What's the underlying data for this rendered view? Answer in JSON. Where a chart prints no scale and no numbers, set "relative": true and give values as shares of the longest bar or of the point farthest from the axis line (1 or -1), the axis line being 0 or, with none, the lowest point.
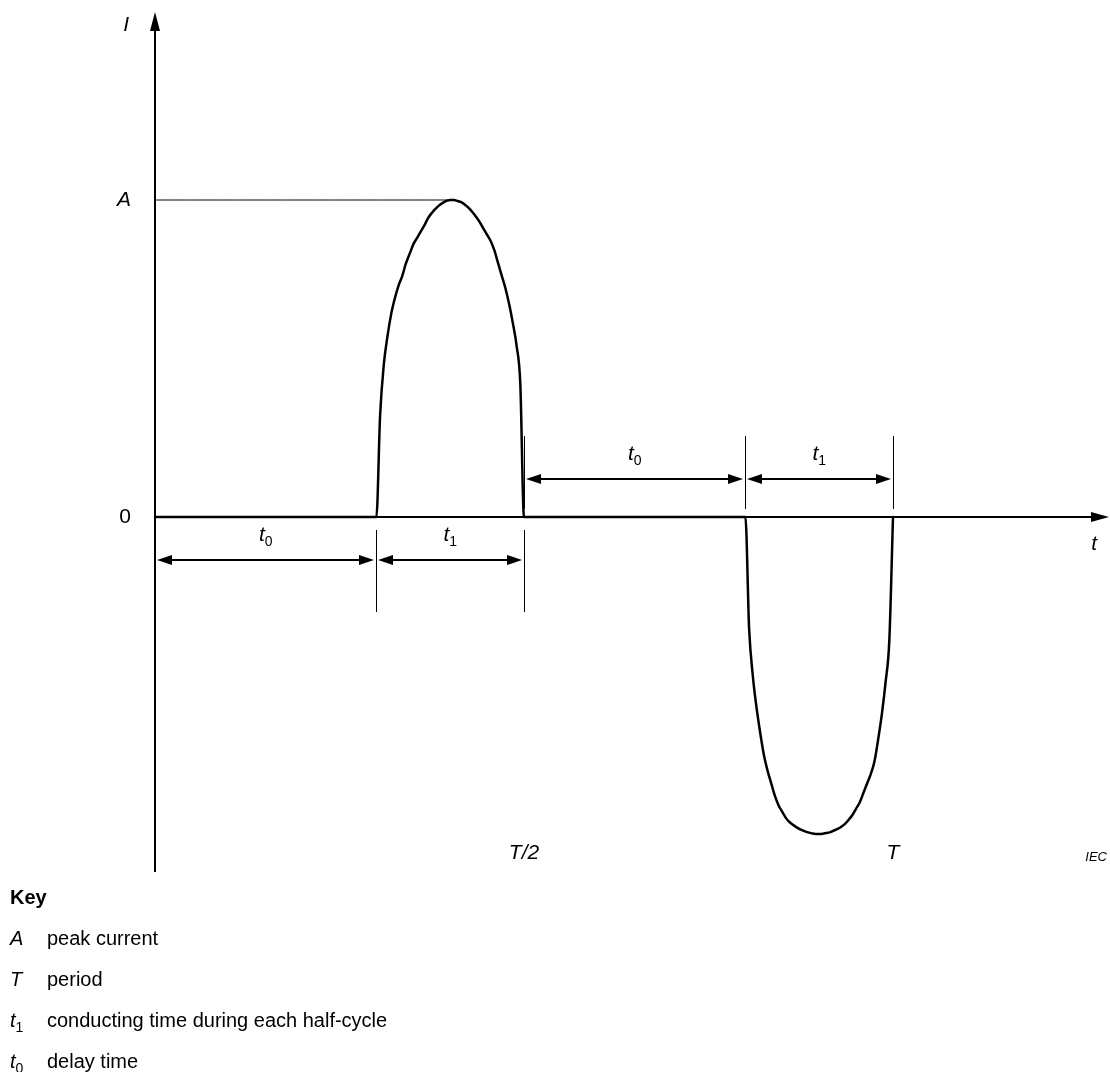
{
  "chart_data": {
    "type": "line",
    "relative": true,
    "marker": "none",
    "categories": [
      null,
      null,
      null,
      null,
      null,
      null,
      null,
      null,
      null,
      null,
      null,
      null,
      null,
      null,
      null,
      null,
      null,
      null,
      null,
      null,
      null,
      null,
      null,
      null,
      null,
      null,
      null,
      null,
      null,
      null,
      null,
      null,
      null,
      null,
      null,
      null,
      null,
      null,
      null,
      null,
      null,
      null,
      null,
      null,
      null,
      null,
      null,
      null,
      null,
      null,
      null,
      null,
      null,
      null,
      null,
      null,
      null,
      null,
      null,
      null,
      null,
      null,
      null,
      null,
      null,
      null,
      null,
      null,
      null,
      null,
      null,
      null,
      null,
      null,
      null,
      null,
      null,
      null,
      null,
      null,
      null,
      null,
      null,
      null,
      null,
      null,
      null,
      null,
      null,
      null,
      null,
      null,
      null,
      null,
      null,
      null,
      null,
      null,
      null,
      null,
      "T/2",
      null,
      null,
      null,
      null,
      null,
      null,
      null,
      null,
      null,
      null,
      null,
      null,
      null,
      null,
      null,
      null,
      null,
      null,
      null,
      null,
      null,
      null,
      null,
      null,
      null,
      null,
      null,
      null,
      null,
      null,
      null,
      null,
      null,
      null,
      null,
      null,
      null,
      null,
      null,
      null,
      null,
      null,
      null,
      null,
      null,
      null,
      null,
      null,
      null,
      null,
      null,
      null,
      null,
      null,
      null,
      null,
      null,
      null,
      null,
      null,
      null,
      null,
      null,
      null,
      null,
      null,
      null,
      null,
      null,
      null,
      null,
      null,
      null,
      null,
      null,
      null,
      null,
      null,
      null,
      null,
      null,
      null,
      null,
      null,
      null,
      null,
      null,
      null,
      null,
      null,
      null,
      null,
      null,
      null,
      null,
      null,
      null,
      null,
      null,
      "T"
    ],
    "series": [
      {
        "color": "#000000",
        "values": [
          0,
          0,
          0,
          0,
          0,
          0,
          0,
          0,
          0,
          0,
          0,
          0,
          0,
          0,
          0,
          0,
          0,
          0,
          0,
          0,
          0,
          0,
          0,
          0,
          0,
          0,
          0,
          0,
          0,
          0,
          0,
          0,
          0,
          0,
          0,
          0,
          0,
          0,
          0,
          0,
          0,
          0,
          0,
          0,
          0,
          0,
          0,
          0,
          0,
          0,
          0,
          0,
          0,
          0,
          0,
          0,
          0,
          0,
          0,
          0,
          0,
          0.32,
          0.48,
          0.57,
          0.64,
          0.69,
          0.73,
          0.76,
          0.8,
          0.83,
          0.86,
          0.88,
          0.9,
          0.92,
          0.943,
          0.959,
          0.972,
          0.983,
          0.991,
          0.997,
          1,
          1,
          0.997,
          0.993,
          0.985,
          0.975,
          0.962,
          0.947,
          0.93,
          0.91,
          0.89,
          0.87,
          0.84,
          0.8,
          0.76,
          0.72,
          0.67,
          0.61,
          0.54,
          0.42,
          0,
          0,
          0,
          0,
          0,
          0,
          0,
          0,
          0,
          0,
          0,
          0,
          0,
          0,
          0,
          0,
          0,
          0,
          0,
          0,
          0,
          0,
          0,
          0,
          0,
          0,
          0,
          0,
          0,
          0,
          0,
          0,
          0,
          0,
          0,
          0,
          0,
          0,
          0,
          0,
          0,
          0,
          0,
          0,
          0,
          0,
          0,
          0,
          0,
          0,
          0,
          0,
          0,
          0,
          0,
          0,
          0,
          0,
          0,
          0,
          0,
          -0.35,
          -0.5,
          -0.6,
          -0.68,
          -0.75,
          -0.8,
          -0.84,
          -0.88,
          -0.91,
          -0.93,
          -0.95,
          -0.963,
          -0.972,
          -0.98,
          -0.986,
          -0.991,
          -0.995,
          -0.998,
          -1,
          -1,
          -0.999,
          -0.997,
          -0.994,
          -0.989,
          -0.984,
          -0.977,
          -0.968,
          -0.955,
          -0.94,
          -0.92,
          -0.9,
          -0.87,
          -0.84,
          -0.81,
          -0.77,
          -0.7,
          -0.62,
          -0.52,
          -0.39,
          0
        ]
      },
      {
        "name": "A",
        "color": "#000000",
        "values": [
          1,
          1,
          1,
          1,
          1,
          1,
          1,
          1,
          1,
          1,
          1,
          1,
          1,
          1,
          1,
          1,
          1,
          1,
          1,
          1,
          1,
          1,
          1,
          1,
          1,
          1,
          1,
          1,
          1,
          1,
          1,
          1,
          1,
          1,
          1,
          1,
          1,
          1,
          1,
          1,
          1,
          1,
          1,
          1,
          1,
          1,
          1,
          1,
          1,
          1,
          1,
          1,
          1,
          1,
          1,
          1,
          1,
          1,
          1,
          1,
          1,
          1,
          1,
          1,
          1,
          1,
          1,
          1,
          1,
          1,
          1,
          1,
          1,
          1,
          1,
          1,
          1,
          1,
          1,
          1,
          1,
          null,
          null,
          null,
          null,
          null,
          null,
          null,
          null,
          null,
          null,
          null,
          null,
          null,
          null,
          null,
          null,
          null,
          null,
          null,
          null,
          null,
          null,
          null,
          null,
          null,
          null,
          null,
          null,
          null,
          null,
          null,
          null,
          null,
          null,
          null,
          null,
          null,
          null,
          null,
          null,
          null,
          null,
          null,
          null,
          null,
          null,
          null,
          null,
          null,
          null,
          null,
          null,
          null,
          null,
          null,
          null,
          null,
          null,
          null,
          null,
          null,
          null,
          null,
          null,
          null,
          null,
          null,
          null,
          null,
          null,
          null,
          null,
          null,
          null,
          null,
          null,
          null,
          null,
          null,
          null,
          null,
          null,
          null,
          null,
          null,
          null,
          null,
          null,
          null,
          null,
          null,
          null,
          null,
          null,
          null,
          null,
          null,
          null,
          null,
          null,
          null,
          null,
          null,
          null,
          null,
          null,
          null,
          null,
          null,
          null,
          null,
          null,
          null,
          null,
          null,
          null,
          null,
          null,
          null,
          null
        ]
      }
    ],
    "annotations": [
      "t$_{0}$",
      "t$_{1}$",
      "t$_{0}$",
      "t$_{1}$",
      "0",
      "I",
      "t",
      "IEC",
      "Key",
      "A peak current",
      "T period",
      "t$_{1}$ conducting time during each half-cycle",
      "t$_{0}$ delay time"
    ]
  }
}
